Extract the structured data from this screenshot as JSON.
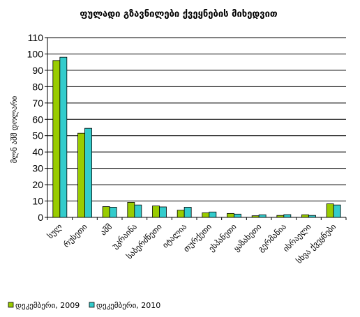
{
  "chart_data": {
    "type": "bar",
    "title": "ფულადი გზავნილები ქვეყნების მიხედვით",
    "ylabel": "მლნ აშშ დოლარი",
    "xlabel": "",
    "ylim": [
      0,
      110
    ],
    "yticks": [
      0,
      10,
      20,
      30,
      40,
      50,
      60,
      70,
      80,
      90,
      100,
      110
    ],
    "grid": true,
    "legend_position": "bottom-left",
    "categories": [
      "სულ",
      "რუსეთი",
      "აშშ",
      "უკრაინა",
      "საბერძნეთი",
      "იტალია",
      "თურქეთი",
      "ესპანეთი",
      "ყაზახეთი",
      "გერმანია",
      "ისრაელი",
      "სხვა ქვეყნები"
    ],
    "series": [
      {
        "name": "დეკემბერი, 2009",
        "color": "#99cc00",
        "values": [
          96.0,
          51.5,
          6.6,
          9.2,
          7.0,
          4.4,
          2.8,
          2.4,
          1.0,
          1.2,
          1.6,
          8.3
        ]
      },
      {
        "name": "დეკემბერი, 2010",
        "color": "#33cccc",
        "values": [
          98.0,
          54.5,
          6.2,
          7.6,
          6.4,
          6.2,
          3.3,
          2.0,
          1.6,
          1.7,
          1.2,
          7.6
        ]
      }
    ]
  }
}
